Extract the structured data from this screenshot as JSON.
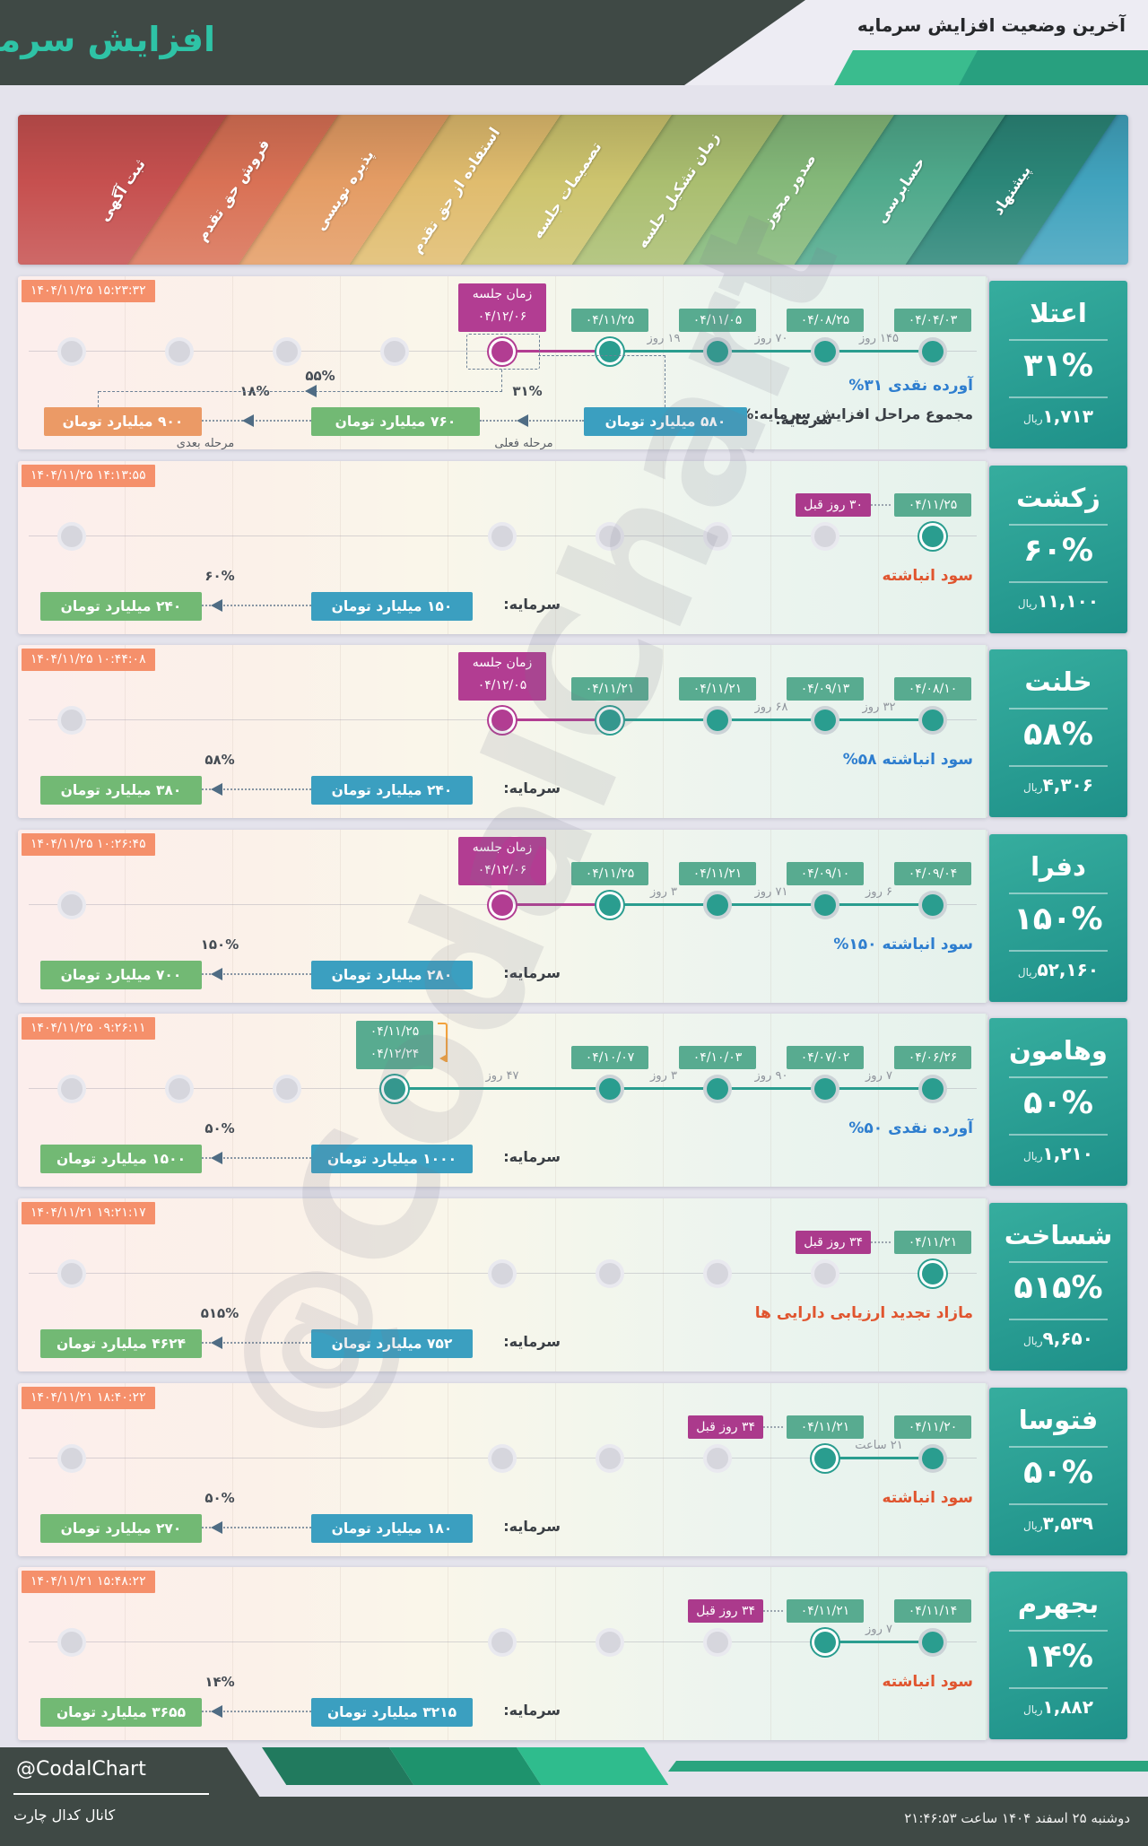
{
  "header": {
    "title": "افزایش سرمایه",
    "subtitle": "آخرین وضعیت افزایش سرمایه"
  },
  "watermark": "@CodalChart",
  "ribbon": {
    "stages": [
      {
        "label": "ثبت آگهی",
        "color": "#c6504f"
      },
      {
        "label": "فروش حق تقدم",
        "color": "#d97155"
      },
      {
        "label": "پذیره نویسی",
        "color": "#e49c64"
      },
      {
        "label": "استفاده از حق تقدم",
        "color": "#e0bc6e"
      },
      {
        "label": "تصمیمات جلسه",
        "color": "#cdc46e"
      },
      {
        "label": "زمان تشکیل جلسه",
        "color": "#aabe70"
      },
      {
        "label": "صدور مجوز",
        "color": "#84b879"
      },
      {
        "label": "حسابرسی",
        "color": "#4fa98b"
      },
      {
        "label": "پیشنهاد",
        "color": "#2b8678"
      }
    ],
    "tail_color": "#41a3be"
  },
  "colors": {
    "accent_teal": "#2a9d8f",
    "magenta": "#b23d92",
    "badge_green": "#58ab90",
    "timestamp_salmon": "#f5906b",
    "status_blue": "#2e7ecf",
    "status_red": "#e0552f",
    "box_blue": "#3b9fc0",
    "box_green": "#72b974",
    "box_orange": "#eb9a66",
    "header_dark": "#3f4945",
    "title_teal": "#2ec3a6"
  },
  "chart_data": {
    "type": "table",
    "title": "آخرین وضعیت افزایش سرمایه",
    "stage_axis_right_to_left": [
      "پیشنهاد",
      "حسابرسی",
      "صدور مجوز",
      "زمان تشکیل جلسه",
      "تصمیمات جلسه",
      "استفاده از حق تقدم",
      "پذیره نویسی",
      "فروش حق تقدم",
      "ثبت آگهی"
    ],
    "companies": [
      {
        "name": "اعتلا",
        "increase_pct": 31,
        "price_rial": "۱,۷۱۳",
        "capital_before": "۵۸۰ میلیارد تومان",
        "stages_capital": [
          "۷۶۰ میلیارد تومان",
          "۹۰۰ میلیارد تومان"
        ],
        "total_pct": 55,
        "source": "آورده نقدی"
      },
      {
        "name": "زکشت",
        "increase_pct": 60,
        "price_rial": "۱۱,۱۰۰",
        "capital_before": "۱۵۰ میلیارد تومان",
        "stages_capital": [
          "۲۴۰ میلیارد تومان"
        ],
        "source": "سود انباشته"
      },
      {
        "name": "خلنت",
        "increase_pct": 58,
        "price_rial": "۴,۳۰۶",
        "capital_before": "۲۴۰ میلیارد تومان",
        "stages_capital": [
          "۳۸۰ میلیارد تومان"
        ],
        "source": "سود انباشته"
      },
      {
        "name": "دفرا",
        "increase_pct": 150,
        "price_rial": "۵۲,۱۶۰",
        "capital_before": "۲۸۰ میلیارد تومان",
        "stages_capital": [
          "۷۰۰ میلیارد تومان"
        ],
        "source": "سود انباشته"
      },
      {
        "name": "وهامون",
        "increase_pct": 50,
        "price_rial": "۱,۲۱۰",
        "capital_before": "۱۰۰۰ میلیارد تومان",
        "stages_capital": [
          "۱۵۰۰ میلیارد تومان"
        ],
        "source": "آورده نقدی"
      },
      {
        "name": "شساخت",
        "increase_pct": 515,
        "price_rial": "۹,۶۵۰",
        "capital_before": "۷۵۲ میلیارد تومان",
        "stages_capital": [
          "۴۶۲۴ میلیارد تومان"
        ],
        "source": "مازاد تجدید ارزیابی دارایی ها"
      },
      {
        "name": "فتوسا",
        "increase_pct": 50,
        "price_rial": "۳,۵۳۹",
        "capital_before": "۱۸۰ میلیارد تومان",
        "stages_capital": [
          "۲۷۰ میلیارد تومان"
        ],
        "source": "سود انباشته"
      },
      {
        "name": "بجهرم",
        "increase_pct": 14,
        "price_rial": "۱,۸۸۲",
        "capital_before": "۳۲۱۵ میلیارد تومان",
        "stages_capital": [
          "۳۶۵۵ میلیارد تومان"
        ],
        "source": "سود انباشته"
      }
    ]
  },
  "rows": [
    {
      "name": "اعتلا",
      "timestamp": "۱۴۰۴/۱۱/۲۵ ۱۵:۲۳:۳۲",
      "gray": [
        1,
        2,
        3,
        4
      ],
      "future": {
        "col": 5,
        "lines": [
          "زمان جلسه",
          "۰۴/۱۲/۰۶"
        ]
      },
      "active": [
        {
          "col": 6,
          "date": "۰۴/۱۱/۲۵",
          "current": true
        },
        {
          "col": 7,
          "date": "۰۴/۱۱/۰۵"
        },
        {
          "col": 8,
          "date": "۰۴/۰۸/۲۵"
        },
        {
          "col": 9,
          "date": "۰۴/۰۴/۰۳"
        }
      ],
      "days": [
        {
          "between": [
            6,
            7
          ],
          "label": "۱۹ روز"
        },
        {
          "between": [
            7,
            8
          ],
          "label": "۷۰ روز"
        },
        {
          "between": [
            8,
            9
          ],
          "label": "۱۴۵ روز"
        }
      ],
      "status": {
        "color": "blue",
        "pct": "%۳۱",
        "text": "آورده نقدی"
      },
      "status2": {
        "text": "مجموع مراحل افزایش سرمایه:",
        "pct": "۵۵%"
      },
      "capital": {
        "label": "سرمایه:",
        "current": "۵۸۰ میلیارد تومان",
        "steps": [
          {
            "pct": "۳۱%",
            "value": "۷۶۰ میلیارد تومان",
            "color": "cgreen",
            "note": "مرحله فعلی"
          },
          {
            "pct": "۱۸%",
            "value": "۹۰۰ میلیارد تومان",
            "color": "corange",
            "note": "مرحله بعدی"
          }
        ],
        "total_pct": "۵۵%"
      },
      "sidebar": {
        "name": "اعتلا",
        "pct": "۳۱%",
        "price": "۱,۷۱۳",
        "unit": "ریال"
      }
    },
    {
      "name": "زکشت",
      "timestamp": "۱۴۰۴/۱۱/۲۵ ۱۴:۱۳:۵۵",
      "gray": [
        1,
        5,
        6,
        7,
        8
      ],
      "active": [
        {
          "col": 9,
          "date": "۰۴/۱۱/۲۵",
          "current": true,
          "ago": "۳۰ روز قبل"
        }
      ],
      "days": [],
      "status": {
        "color": "red",
        "text": "سود انباشته"
      },
      "capital": {
        "label": "سرمایه:",
        "current": "۱۵۰ میلیارد تومان",
        "steps": [
          {
            "pct": "۶۰%",
            "value": "۲۴۰ میلیارد تومان",
            "color": "cgreen"
          }
        ]
      },
      "sidebar": {
        "name": "زکشت",
        "pct": "۶۰%",
        "price": "۱۱,۱۰۰",
        "unit": "ریال"
      }
    },
    {
      "name": "خلنت",
      "timestamp": "۱۴۰۴/۱۱/۲۵ ۱۰:۴۴:۰۸",
      "gray": [
        1
      ],
      "future": {
        "col": 5,
        "lines": [
          "زمان جلسه",
          "۰۴/۱۲/۰۵"
        ]
      },
      "active": [
        {
          "col": 6,
          "date": "۰۴/۱۱/۲۱",
          "current": true
        },
        {
          "col": 7,
          "date": "۰۴/۱۱/۲۱"
        },
        {
          "col": 8,
          "date": "۰۴/۰۹/۱۳"
        },
        {
          "col": 9,
          "date": "۰۴/۰۸/۱۰"
        }
      ],
      "days": [
        {
          "between": [
            7,
            8
          ],
          "label": "۶۸ روز"
        },
        {
          "between": [
            8,
            9
          ],
          "label": "۳۲ روز"
        }
      ],
      "status": {
        "color": "blue",
        "pct": "%۵۸",
        "text": "سود انباشته"
      },
      "capital": {
        "label": "سرمایه:",
        "current": "۲۴۰ میلیارد تومان",
        "steps": [
          {
            "pct": "۵۸%",
            "value": "۳۸۰ میلیارد تومان",
            "color": "cgreen"
          }
        ]
      },
      "sidebar": {
        "name": "خلنت",
        "pct": "۵۸%",
        "price": "۴,۳۰۶",
        "unit": "ریال"
      }
    },
    {
      "name": "دفرا",
      "timestamp": "۱۴۰۴/۱۱/۲۵ ۱۰:۲۶:۴۵",
      "gray": [
        1
      ],
      "future": {
        "col": 5,
        "lines": [
          "زمان جلسه",
          "۰۴/۱۲/۰۶"
        ]
      },
      "active": [
        {
          "col": 6,
          "date": "۰۴/۱۱/۲۵",
          "current": true
        },
        {
          "col": 7,
          "date": "۰۴/۱۱/۲۱"
        },
        {
          "col": 8,
          "date": "۰۴/۰۹/۱۰"
        },
        {
          "col": 9,
          "date": "۰۴/۰۹/۰۴"
        }
      ],
      "days": [
        {
          "between": [
            6,
            7
          ],
          "label": "۳ روز"
        },
        {
          "between": [
            7,
            8
          ],
          "label": "۷۱ روز"
        },
        {
          "between": [
            8,
            9
          ],
          "label": "۶ روز"
        }
      ],
      "status": {
        "color": "blue",
        "pct": "%۱۵۰",
        "text": "سود انباشته"
      },
      "capital": {
        "label": "سرمایه:",
        "current": "۲۸۰ میلیارد تومان",
        "steps": [
          {
            "pct": "۱۵۰%",
            "value": "۷۰۰ میلیارد تومان",
            "color": "cgreen"
          }
        ]
      },
      "sidebar": {
        "name": "دفرا",
        "pct": "۱۵۰%",
        "price": "۵۲,۱۶۰",
        "unit": "ریال"
      }
    },
    {
      "name": "وهامون",
      "timestamp": "۱۴۰۴/۱۱/۲۵ ۰۹:۲۶:۱۱",
      "gray": [
        1,
        2,
        3
      ],
      "active": [
        {
          "col": 4,
          "date2": [
            "۰۴/۱۱/۲۵",
            "۰۴/۱۲/۲۴"
          ],
          "current": true,
          "bracket": true
        },
        {
          "col": 6,
          "date": "۰۴/۱۰/۰۷"
        },
        {
          "col": 7,
          "date": "۰۴/۱۰/۰۳"
        },
        {
          "col": 8,
          "date": "۰۴/۰۷/۰۲"
        },
        {
          "col": 9,
          "date": "۰۴/۰۶/۲۶"
        }
      ],
      "days": [
        {
          "between": [
            4,
            6
          ],
          "label": "۴۷ روز"
        },
        {
          "between": [
            6,
            7
          ],
          "label": "۳ روز"
        },
        {
          "between": [
            7,
            8
          ],
          "label": "۹۰ روز"
        },
        {
          "between": [
            8,
            9
          ],
          "label": "۷ روز"
        }
      ],
      "status": {
        "color": "blue",
        "pct": "%۵۰",
        "text": "آورده نقدی"
      },
      "capital": {
        "label": "سرمایه:",
        "current": "۱۰۰۰ میلیارد تومان",
        "steps": [
          {
            "pct": "۵۰%",
            "value": "۱۵۰۰ میلیارد تومان",
            "color": "cgreen"
          }
        ]
      },
      "sidebar": {
        "name": "وهامون",
        "pct": "۵۰%",
        "price": "۱,۲۱۰",
        "unit": "ریال"
      }
    },
    {
      "name": "شساخت",
      "timestamp": "۱۴۰۴/۱۱/۲۱ ۱۹:۲۱:۱۷",
      "gray": [
        1,
        5,
        6,
        7,
        8
      ],
      "active": [
        {
          "col": 9,
          "date": "۰۴/۱۱/۲۱",
          "current": true,
          "ago": "۳۴ روز قبل"
        }
      ],
      "days": [],
      "status": {
        "color": "red",
        "text": "مازاد تجدید ارزیابی دارایی ها"
      },
      "capital": {
        "label": "سرمایه:",
        "current": "۷۵۲ میلیارد تومان",
        "steps": [
          {
            "pct": "۵۱۵%",
            "value": "۴۶۲۴ میلیارد تومان",
            "color": "cgreen"
          }
        ]
      },
      "sidebar": {
        "name": "شساخت",
        "pct": "۵۱۵%",
        "price": "۹,۶۵۰",
        "unit": "ریال"
      }
    },
    {
      "name": "فتوسا",
      "timestamp": "۱۴۰۴/۱۱/۲۱ ۱۸:۴۰:۲۲",
      "gray": [
        1,
        5,
        6,
        7
      ],
      "active": [
        {
          "col": 8,
          "date": "۰۴/۱۱/۲۱",
          "current": true,
          "ago": "۳۴ روز قبل"
        },
        {
          "col": 9,
          "date": "۰۴/۱۱/۲۰"
        }
      ],
      "days": [
        {
          "between": [
            8,
            9
          ],
          "label": "۲۱ ساعت"
        }
      ],
      "status": {
        "color": "red",
        "text": "سود انباشته"
      },
      "capital": {
        "label": "سرمایه:",
        "current": "۱۸۰ میلیارد تومان",
        "steps": [
          {
            "pct": "۵۰%",
            "value": "۲۷۰ میلیارد تومان",
            "color": "cgreen"
          }
        ]
      },
      "sidebar": {
        "name": "فتوسا",
        "pct": "۵۰%",
        "price": "۳,۵۳۹",
        "unit": "ریال"
      }
    },
    {
      "name": "بجهرم",
      "timestamp": "۱۴۰۴/۱۱/۲۱ ۱۵:۴۸:۲۲",
      "gray": [
        1,
        5,
        6,
        7
      ],
      "active": [
        {
          "col": 8,
          "date": "۰۴/۱۱/۲۱",
          "current": true,
          "ago": "۳۴ روز قبل"
        },
        {
          "col": 9,
          "date": "۰۴/۱۱/۱۴"
        }
      ],
      "days": [
        {
          "between": [
            8,
            9
          ],
          "label": "۷ روز"
        }
      ],
      "status": {
        "color": "red",
        "text": "سود انباشته"
      },
      "capital": {
        "label": "سرمایه:",
        "current": "۳۲۱۵ میلیارد تومان",
        "steps": [
          {
            "pct": "۱۴%",
            "value": "۳۶۵۵ میلیارد تومان",
            "color": "cgreen"
          }
        ]
      },
      "sidebar": {
        "name": "بجهرم",
        "pct": "۱۴%",
        "price": "۱,۸۸۲",
        "unit": "ریال"
      }
    }
  ],
  "footer": {
    "handle": "@CodalChart",
    "channel": "کانال کدال چارت",
    "datetime": "دوشنبه ۲۵ اسفند ۱۴۰۴ ساعت ۲۱:۴۶:۵۳"
  }
}
